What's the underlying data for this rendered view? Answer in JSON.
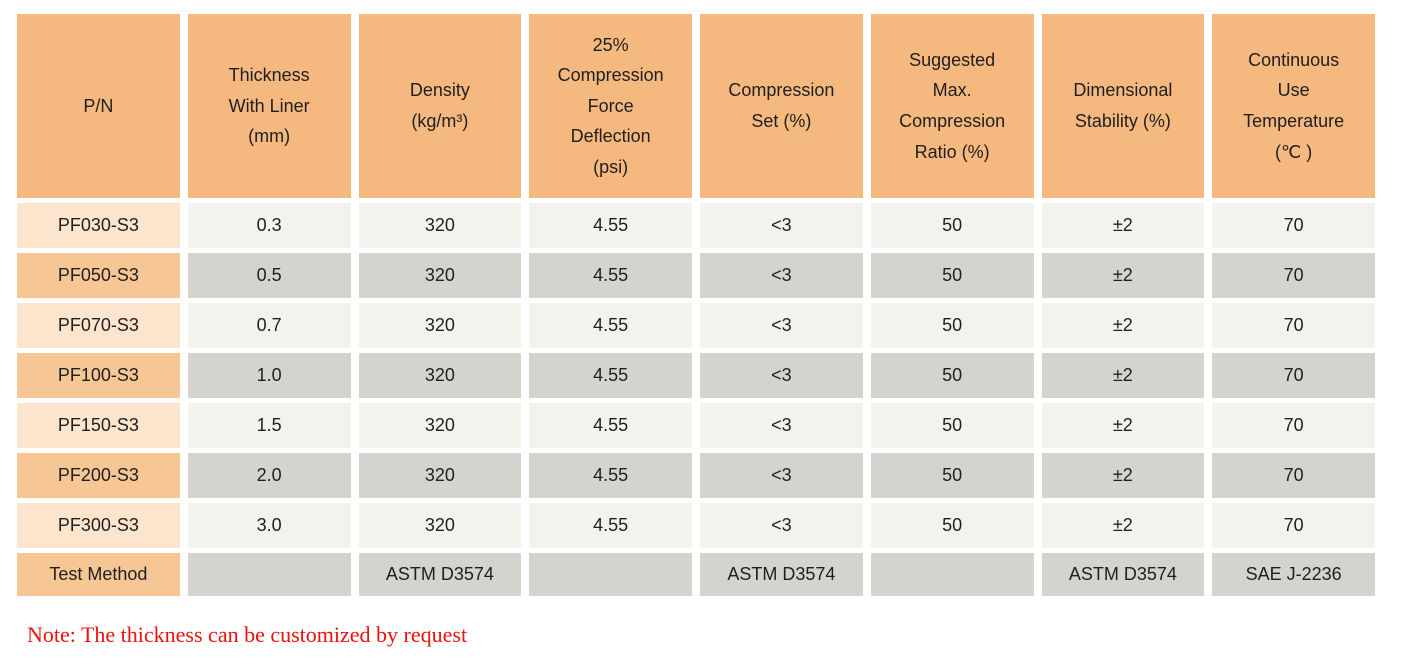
{
  "table": {
    "headers": [
      "P/N",
      "Thickness\nWith Liner\n(mm)",
      "Density\n(kg/m³)",
      "25%\nCompression\nForce\nDeflection\n(psi)",
      "Compression\nSet (%)",
      "Suggested\nMax.\nCompression\nRatio (%)",
      "Dimensional\nStability (%)",
      "Continuous\nUse\nTemperature\n(℃ )"
    ],
    "rows": [
      {
        "pn": "PF030-S3",
        "values": [
          "0.3",
          "320",
          "4.55",
          "<3",
          "50",
          "±2",
          "70"
        ]
      },
      {
        "pn": "PF050-S3",
        "values": [
          "0.5",
          "320",
          "4.55",
          "<3",
          "50",
          "±2",
          "70"
        ]
      },
      {
        "pn": "PF070-S3",
        "values": [
          "0.7",
          "320",
          "4.55",
          "<3",
          "50",
          "±2",
          "70"
        ]
      },
      {
        "pn": "PF100-S3",
        "values": [
          "1.0",
          "320",
          "4.55",
          "<3",
          "50",
          "±2",
          "70"
        ]
      },
      {
        "pn": "PF150-S3",
        "values": [
          "1.5",
          "320",
          "4.55",
          "<3",
          "50",
          "±2",
          "70"
        ]
      },
      {
        "pn": "PF200-S3",
        "values": [
          "2.0",
          "320",
          "4.55",
          "<3",
          "50",
          "±2",
          "70"
        ]
      },
      {
        "pn": "PF300-S3",
        "values": [
          "3.0",
          "320",
          "4.55",
          "<3",
          "50",
          "±2",
          "70"
        ]
      }
    ],
    "test_method": {
      "label": "Test Method",
      "values": [
        "",
        "ASTM D3574",
        "",
        "ASTM D3574",
        "",
        "ASTM D3574",
        "SAE J-2236"
      ]
    }
  },
  "note": "Note: The thickness can be customized by request",
  "colors": {
    "header_bg": "#F5B87E",
    "pn_column_light_bg": "#FDE5CD",
    "pn_column_dark_bg": "#F7C695",
    "value_cell_light_bg": "#F3F3EE",
    "value_cell_dark_bg": "#D4D3CD",
    "note_text": "#E8130B"
  }
}
